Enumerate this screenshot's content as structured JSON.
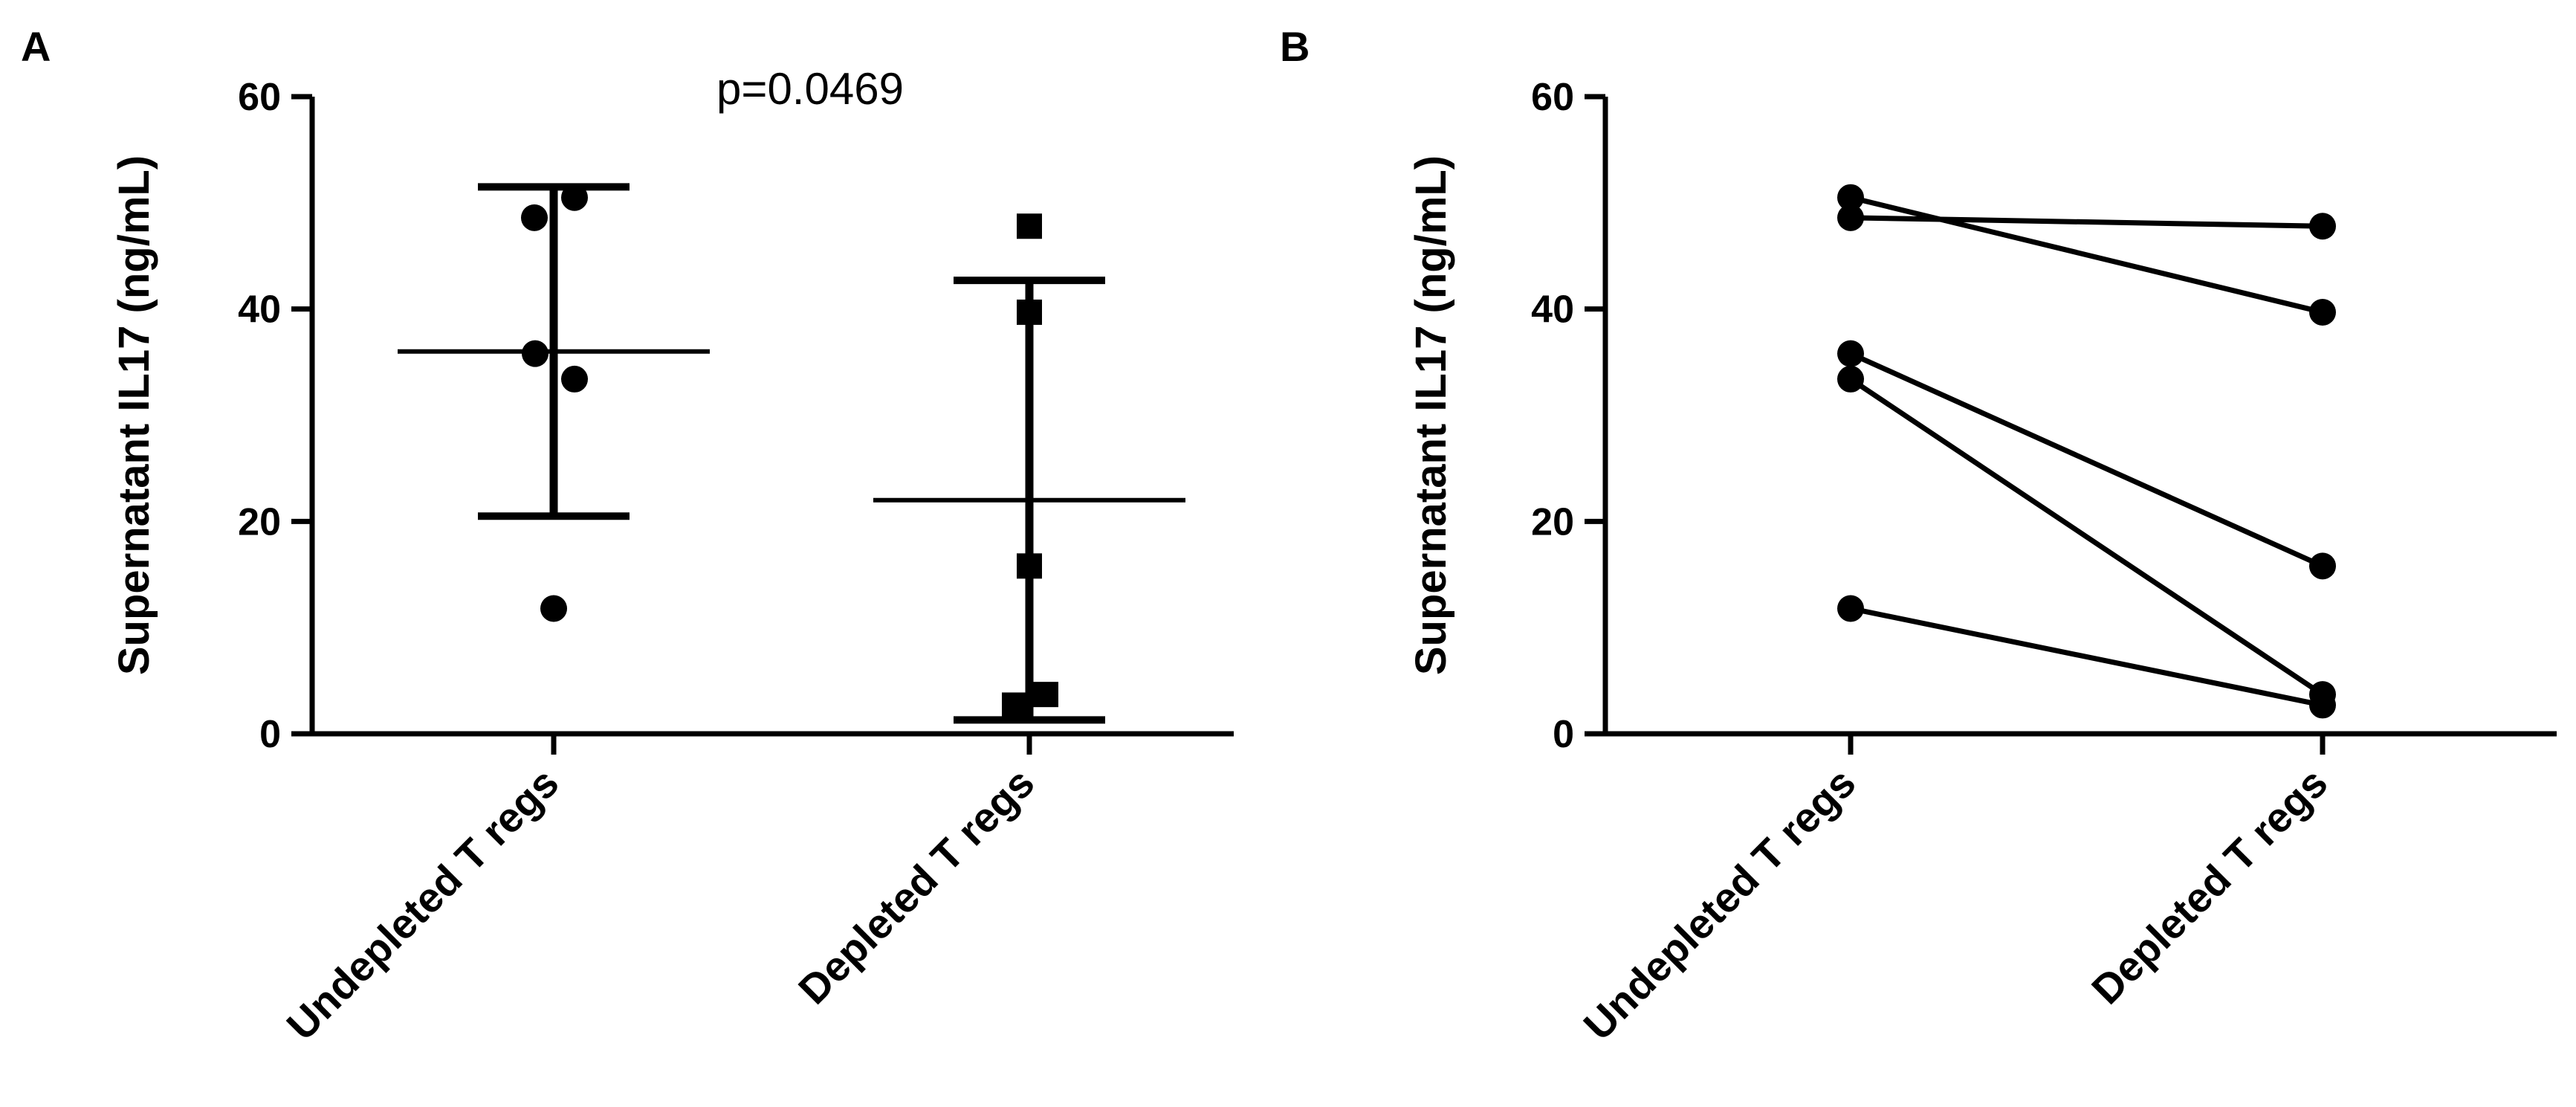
{
  "chart_data": [
    {
      "panel": "A",
      "type": "scatter",
      "title": "",
      "xlabel": "",
      "ylabel": "Supernatant IL17 (ng/mL)",
      "ylim": [
        0,
        60
      ],
      "yticks": [
        0,
        20,
        40,
        60
      ],
      "categories": [
        "Undepleted T regs",
        "Depleted T regs"
      ],
      "series": [
        {
          "name": "Undepleted T regs",
          "marker": "circle",
          "values": [
            50.5,
            48.6,
            35.8,
            33.4,
            11.8
          ]
        },
        {
          "name": "Depleted T regs",
          "marker": "square",
          "values": [
            47.8,
            39.7,
            15.8,
            3.7,
            2.7
          ]
        }
      ],
      "summary": [
        {
          "category": "Undepleted T regs",
          "mean": 36.0,
          "sd_upper": 51.5,
          "sd_lower": 20.5
        },
        {
          "category": "Depleted T regs",
          "mean": 22.0,
          "sd_upper": 42.7,
          "sd_lower": 1.3
        }
      ],
      "annotations": [
        {
          "text": "p=0.0469"
        }
      ]
    },
    {
      "panel": "B",
      "type": "line",
      "title": "",
      "xlabel": "",
      "ylabel": "Supernatant IL17 (ng/mL)",
      "ylim": [
        0,
        60
      ],
      "yticks": [
        0,
        20,
        40,
        60
      ],
      "categories": [
        "Undepleted T regs",
        "Depleted T regs"
      ],
      "pairs": [
        {
          "before": 50.5,
          "after": 39.7
        },
        {
          "before": 48.6,
          "after": 47.8
        },
        {
          "before": 35.8,
          "after": 15.8
        },
        {
          "before": 33.4,
          "after": 3.7
        },
        {
          "before": 11.8,
          "after": 2.7
        }
      ]
    }
  ]
}
